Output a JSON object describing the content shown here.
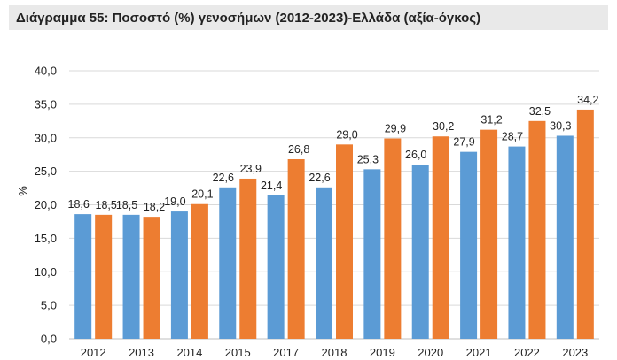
{
  "chart_data": {
    "type": "bar",
    "title": "Διάγραμμα 55: Ποσοστό (%) γενοσήμων (2012-2023)-Ελλάδα (αξία-όγκος)",
    "xlabel": "",
    "ylabel": "%",
    "ylim": [
      0,
      40
    ],
    "yticks": [
      "0,0",
      "5,0",
      "10,0",
      "15,0",
      "20,0",
      "25,0",
      "30,0",
      "35,0",
      "40,0"
    ],
    "grid": true,
    "categories": [
      "2012",
      "2013",
      "2014",
      "2015",
      "2017",
      "2018",
      "2019",
      "2020",
      "2021",
      "2022",
      "2023"
    ],
    "series": [
      {
        "values": [
          18.6,
          18.5,
          19.0,
          22.6,
          21.4,
          22.6,
          25.3,
          26.0,
          27.9,
          28.7,
          30.3
        ],
        "labels": [
          "18,6",
          "18,5",
          "19,0",
          "22,6",
          "21,4",
          "22,6",
          "25,3",
          "26,0",
          "27,9",
          "28,7",
          "30,3"
        ],
        "color": "#5b9bd5"
      },
      {
        "values": [
          18.5,
          18.2,
          20.1,
          23.9,
          26.8,
          29.0,
          29.9,
          30.2,
          31.2,
          32.5,
          34.2
        ],
        "labels": [
          "18,5",
          "18,2",
          "20,1",
          "23,9",
          "26,8",
          "29,0",
          "29,9",
          "30,2",
          "31,2",
          "32,5",
          "34,2"
        ],
        "color": "#ed7d31"
      }
    ]
  }
}
